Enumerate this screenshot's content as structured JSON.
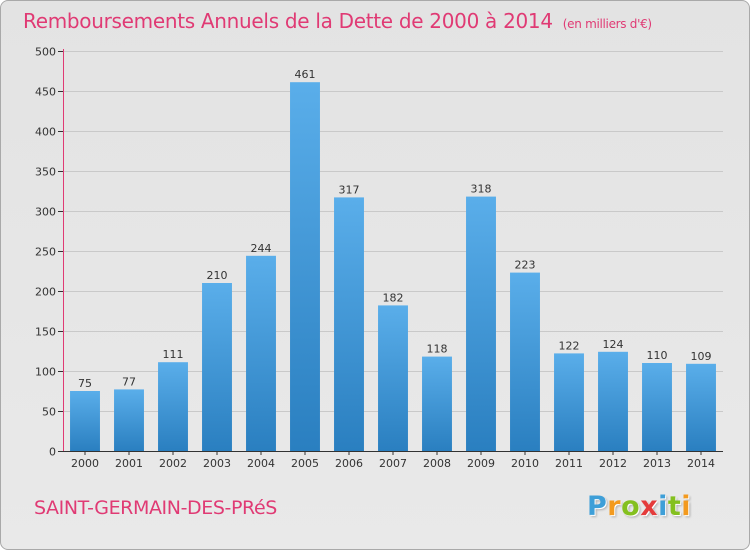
{
  "title": "Remboursements Annuels de la Dette de 2000 à 2014",
  "subtitle": "(en milliers d'€)",
  "commune": "SAINT-GERMAIN-DES-PRéS",
  "logo": {
    "text": "Proxiti",
    "letters": [
      "P",
      "r",
      "o",
      "x",
      "i",
      "t",
      "i"
    ],
    "colors": [
      "#3e9fd8",
      "#f39a1e",
      "#84c01f",
      "#e43b3b",
      "#3e9fd8",
      "#84c01f",
      "#f39a1e"
    ]
  },
  "colors": {
    "accent": "#e03a74",
    "bar_top": "#5aaeea",
    "bar_bottom": "#2a7fc0",
    "axis": "#333333",
    "axis_accent": "#e03a74",
    "grid": "#c9c9c9",
    "background": "#e6e6e6"
  },
  "chart_data": {
    "type": "bar",
    "categories": [
      "2000",
      "2001",
      "2002",
      "2003",
      "2004",
      "2005",
      "2006",
      "2007",
      "2008",
      "2009",
      "2010",
      "2011",
      "2012",
      "2013",
      "2014"
    ],
    "values": [
      75,
      77,
      111,
      210,
      244,
      461,
      317,
      182,
      118,
      318,
      223,
      122,
      124,
      110,
      109
    ],
    "title": "Remboursements Annuels de la Dette de 2000 à 2014",
    "ylim": [
      0,
      500
    ],
    "yticks": [
      "0",
      "50",
      "100",
      "150",
      "200",
      "250",
      "300",
      "350",
      "400",
      "450",
      "500"
    ],
    "grid": true,
    "data_labels": true
  }
}
